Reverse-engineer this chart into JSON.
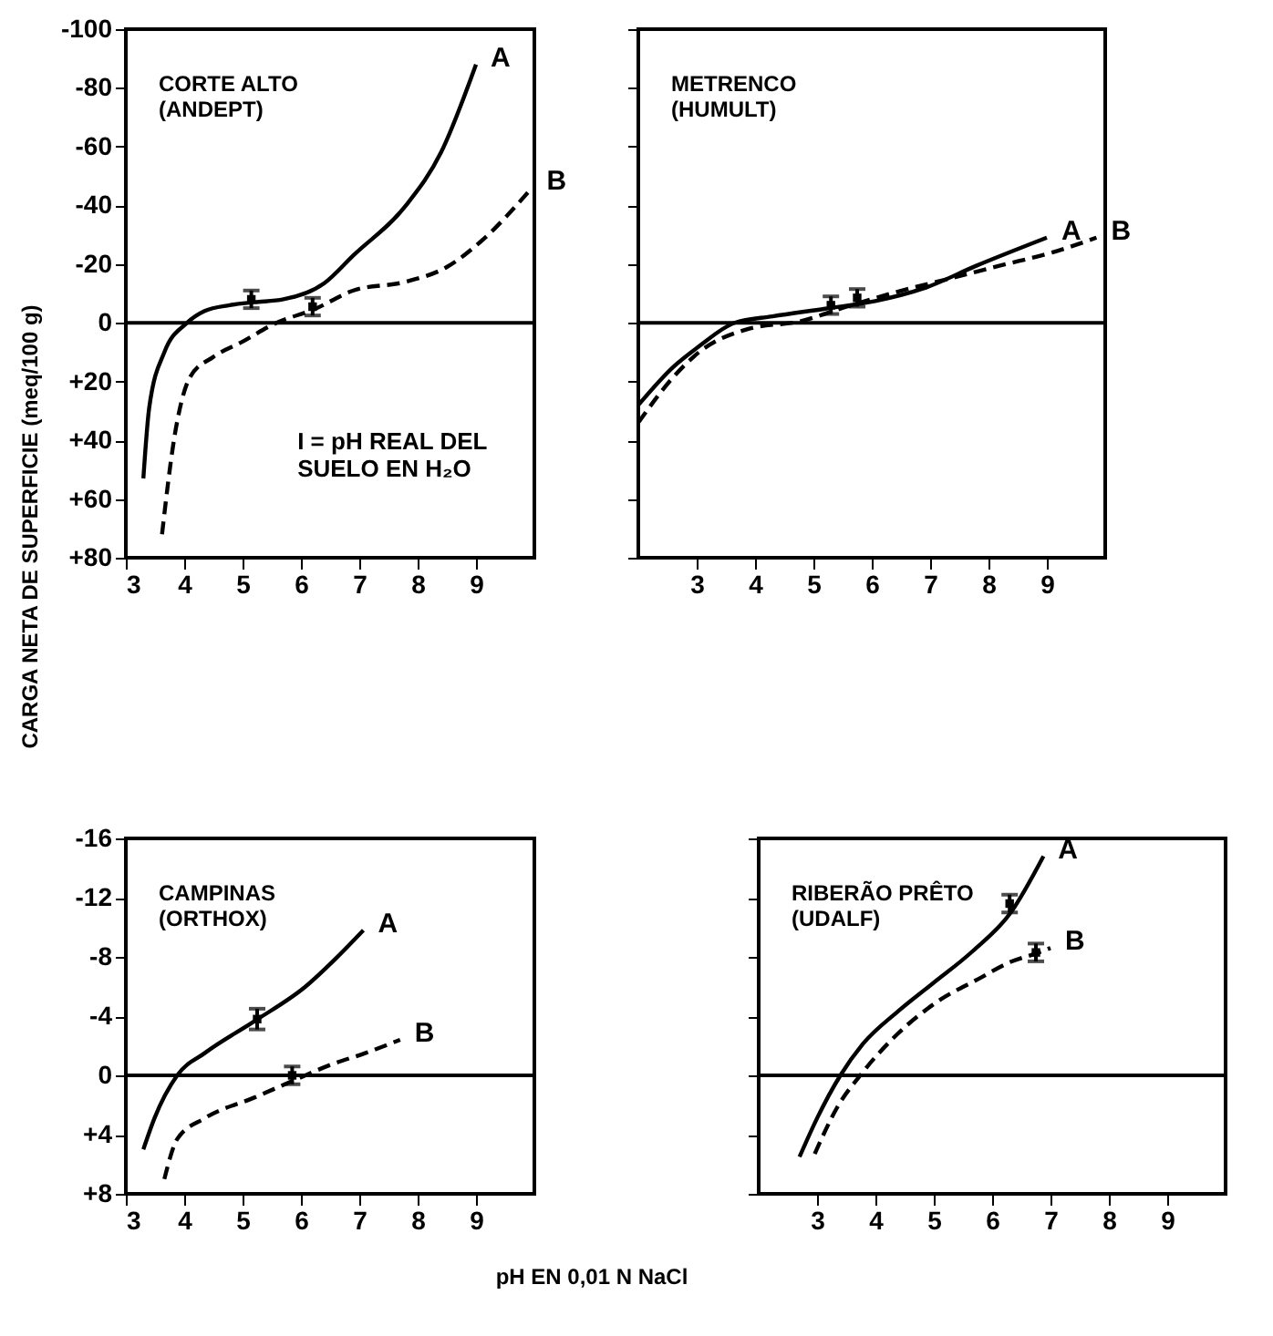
{
  "chart_data": [
    {
      "type": "line",
      "title": "CORTE ALTO\n(ANDEPT)",
      "ylabel": "CARGA NETA DE SUPERFICIE (meq/100 g)",
      "annotations": [
        "I = pH REAL DEL\nSUELO EN H₂O"
      ],
      "xlim": [
        3,
        10
      ],
      "xticks": [
        3,
        4,
        5,
        6,
        7,
        8,
        9
      ],
      "ylim": [
        80,
        -100
      ],
      "yticks": [
        -100,
        -80,
        -60,
        -40,
        -20,
        0,
        {
          "value": 20,
          "label": "+20"
        },
        {
          "value": 40,
          "label": "+40"
        },
        {
          "value": 60,
          "label": "+60"
        },
        {
          "value": 80,
          "label": "+80"
        }
      ],
      "grid": false,
      "ref_lines": [
        {
          "axis": "y",
          "value": 0,
          "color": "#000000"
        }
      ],
      "series": [
        {
          "name": "A",
          "color": "#000000",
          "line_style": "solid",
          "x": [
            3.3,
            3.4,
            3.66,
            4.05,
            4.35,
            4.78,
            5.2,
            5.7,
            6.4,
            6.9,
            7.8,
            8.4,
            9.0
          ],
          "values": [
            53,
            29,
            10,
            0,
            -4,
            -6,
            -7,
            -8,
            -13.5,
            -23,
            -40,
            -58,
            -88
          ]
        },
        {
          "name": "B",
          "color": "#000000",
          "line_style": "dashed",
          "x": [
            3.62,
            3.84,
            4.1,
            4.5,
            5.0,
            5.55,
            6.25,
            6.9,
            7.8,
            8.5,
            9.1,
            9.96
          ],
          "values": [
            72,
            38,
            18.5,
            11.6,
            6.4,
            0.3,
            -4.8,
            -11,
            -14,
            -19,
            -28,
            -46
          ]
        },
        {
          "type": "scatter",
          "marker": "square",
          "color": "#000000",
          "x": [
            5.15,
            6.2
          ],
          "values": [
            -8,
            -5.5
          ],
          "errors": [
            3,
            3
          ]
        }
      ]
    },
    {
      "type": "line",
      "title": "METRENCO\n(HUMULT)",
      "xlim": [
        2,
        10
      ],
      "xticks": [
        3,
        4,
        5,
        6,
        7,
        8,
        9
      ],
      "ylim": [
        80,
        -100
      ],
      "yticks": [
        {
          "value": -100,
          "label": null
        },
        {
          "value": -80,
          "label": null
        },
        {
          "value": -60,
          "label": null
        },
        {
          "value": -40,
          "label": null
        },
        {
          "value": -20,
          "label": null
        },
        {
          "value": 0,
          "label": null
        },
        {
          "value": 20,
          "label": null
        },
        {
          "value": 40,
          "label": null
        },
        {
          "value": 60,
          "label": null
        },
        {
          "value": 80,
          "label": null
        }
      ],
      "tick_labels": "x",
      "grid": false,
      "ref_lines": [
        {
          "axis": "y",
          "value": 0,
          "color": "#000000"
        }
      ],
      "series": [
        {
          "name": "A",
          "color": "#000000",
          "line_style": "solid",
          "x": [
            2.0,
            2.6,
            3.04,
            3.65,
            4.3,
            5.2,
            6.06,
            6.9,
            7.8,
            9.0
          ],
          "values": [
            28,
            15,
            8,
            0,
            -2.2,
            -4.8,
            -7.4,
            -11.8,
            -19.5,
            -29
          ]
        },
        {
          "name": "B",
          "color": "#000000",
          "line_style": "dashed",
          "x": [
            2.0,
            2.6,
            3.04,
            3.9,
            4.77,
            5.6,
            6.5,
            7.36,
            8.2,
            9.1,
            9.85
          ],
          "values": [
            34,
            18.5,
            10,
            2,
            -0.5,
            -5.7,
            -10.9,
            -15.2,
            -19.5,
            -24,
            -29
          ]
        },
        {
          "type": "scatter",
          "marker": "square",
          "color": "#000000",
          "x": [
            5.3,
            5.75
          ],
          "values": [
            -6,
            -8.5
          ],
          "errors": [
            3,
            3
          ]
        }
      ]
    },
    {
      "type": "line",
      "title": "CAMPINAS\n(ORTHOX)",
      "xlabel": "pH EN 0,01 N NaCl",
      "xlim": [
        3,
        10
      ],
      "xticks": [
        3,
        4,
        5,
        6,
        7,
        8,
        9
      ],
      "ylim": [
        8,
        -16
      ],
      "yticks": [
        -16,
        -12,
        -8,
        -4,
        0,
        {
          "value": 4,
          "label": "+4"
        },
        {
          "value": 8,
          "label": "+8"
        }
      ],
      "grid": false,
      "ref_lines": [
        {
          "axis": "y",
          "value": 0,
          "color": "#000000"
        }
      ],
      "series": [
        {
          "name": "A",
          "color": "#000000",
          "line_style": "solid",
          "x": [
            3.3,
            3.49,
            3.88,
            4.35,
            5.22,
            6.08,
            6.6,
            7.07
          ],
          "values": [
            5,
            2.9,
            0,
            -1.5,
            -3.7,
            -6,
            -7.9,
            -9.8
          ]
        },
        {
          "name": "B",
          "color": "#000000",
          "line_style": "dashed",
          "x": [
            3.66,
            3.88,
            4.35,
            5.2,
            5.9,
            6.5,
            7.1,
            7.7
          ],
          "values": [
            7,
            4.3,
            2.9,
            1.5,
            0.3,
            -0.7,
            -1.5,
            -2.4
          ]
        },
        {
          "type": "scatter",
          "marker": "square",
          "color": "#000000",
          "x": [
            5.25,
            5.85
          ],
          "values": [
            -3.8,
            0
          ],
          "errors": [
            0.7,
            0.6
          ]
        }
      ]
    },
    {
      "type": "line",
      "title": "RIBERÃO PRÊTO\n(UDALF)",
      "xlim": [
        2,
        10
      ],
      "xticks": [
        3,
        4,
        5,
        6,
        7,
        8,
        9
      ],
      "ylim": [
        8,
        -16
      ],
      "yticks": [
        {
          "value": -16,
          "label": null
        },
        {
          "value": -12,
          "label": null
        },
        {
          "value": -8,
          "label": null
        },
        {
          "value": -4,
          "label": null
        },
        {
          "value": 0,
          "label": null
        },
        {
          "value": 4,
          "label": null
        },
        {
          "value": 8,
          "label": null
        }
      ],
      "tick_labels": "x",
      "grid": false,
      "ref_lines": [
        {
          "axis": "y",
          "value": 0,
          "color": "#000000"
        }
      ],
      "series": [
        {
          "name": "A",
          "color": "#000000",
          "line_style": "solid",
          "x": [
            2.7,
            3.0,
            3.4,
            3.78,
            4.38,
            4.98,
            5.67,
            6.32,
            6.88
          ],
          "values": [
            5.5,
            2.9,
            0,
            -2.1,
            -4.3,
            -6.2,
            -8.4,
            -11,
            -14.8
          ]
        },
        {
          "name": "B",
          "color": "#000000",
          "line_style": "dashed",
          "x": [
            2.96,
            3.34,
            3.78,
            4.38,
            5.07,
            5.76,
            6.28,
            6.8,
            7.0
          ],
          "values": [
            5.3,
            2.2,
            -0.2,
            -2.8,
            -5,
            -6.5,
            -7.6,
            -8.3,
            -8.6
          ]
        },
        {
          "type": "scatter",
          "marker": "square",
          "color": "#000000",
          "x": [
            6.3,
            6.75
          ],
          "values": [
            -11.6,
            -8.3
          ],
          "errors": [
            0.6,
            0.6
          ]
        }
      ]
    }
  ]
}
